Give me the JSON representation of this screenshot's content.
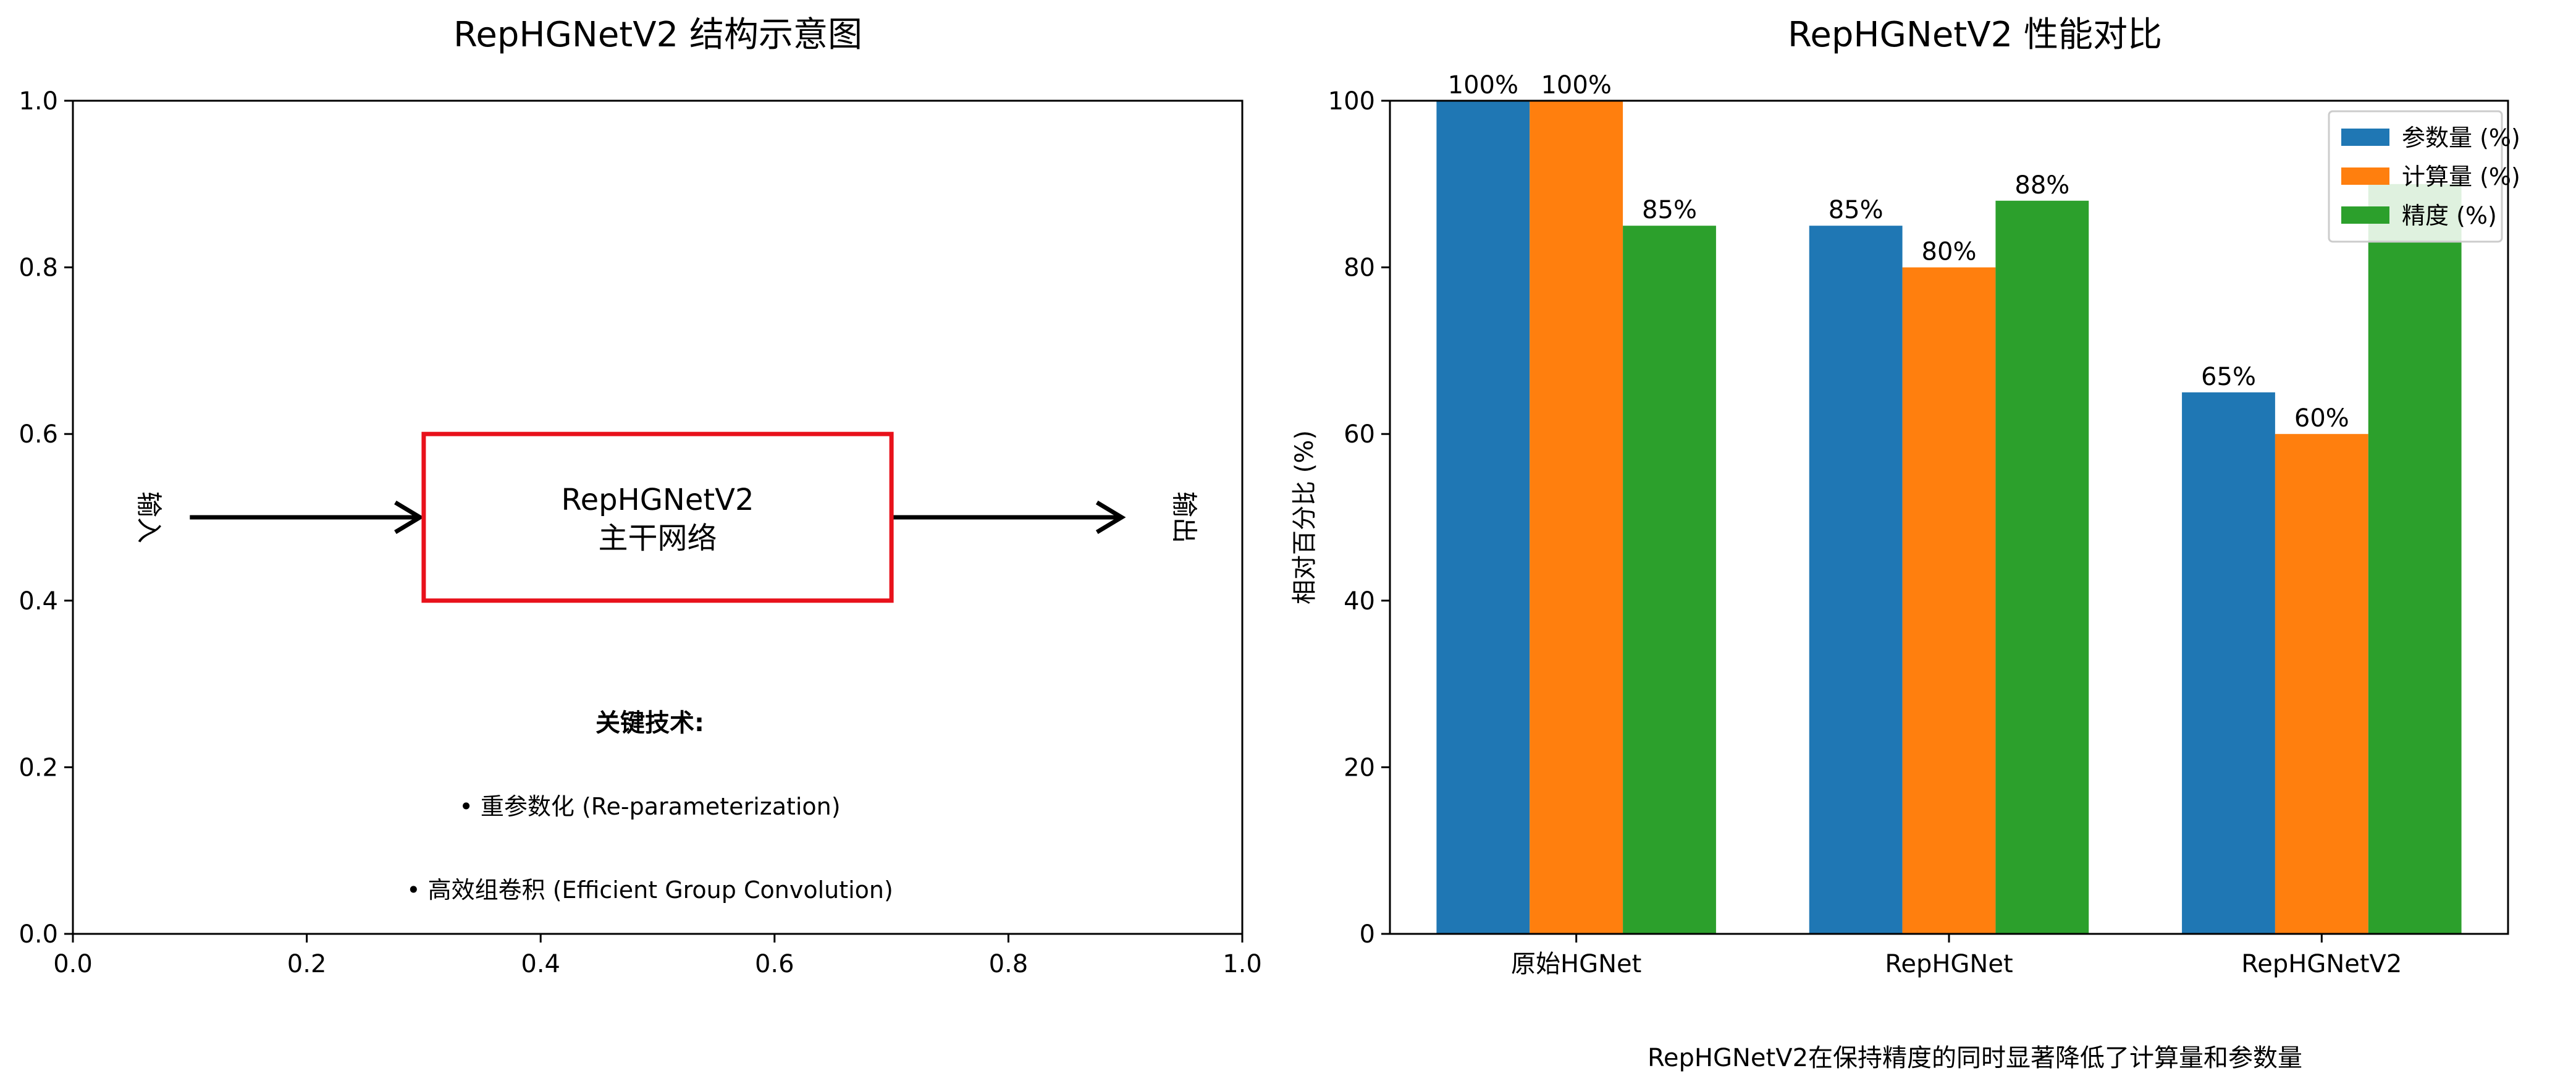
{
  "chart_data": [
    {
      "type": "diagram",
      "title": "RepHGNetV2 结构示意图",
      "xlim": [
        0,
        1
      ],
      "ylim": [
        0,
        1
      ],
      "x_ticks": [
        "0.0",
        "0.2",
        "0.4",
        "0.6",
        "0.8",
        "1.0"
      ],
      "y_ticks": [
        "0.0",
        "0.2",
        "0.4",
        "0.6",
        "0.8",
        "1.0"
      ],
      "input_label": "输入",
      "output_label": "输出",
      "box": {
        "line1": "RepHGNetV2",
        "line2": "主干网络",
        "x0": 0.3,
        "x1": 0.7,
        "y0": 0.4,
        "y1": 0.6,
        "color": "#e8111b"
      },
      "arrows": [
        {
          "from": [
            0.1,
            0.5
          ],
          "to": [
            0.3,
            0.5
          ]
        },
        {
          "from": [
            0.7,
            0.5
          ],
          "to": [
            0.9,
            0.5
          ]
        }
      ],
      "tech_title": "关键技术:",
      "tech_items": [
        "• 重参数化 (Re-parameterization)",
        "• 高效组卷积 (Efficient Group Convolution)"
      ]
    },
    {
      "type": "bar",
      "title": "RepHGNetV2 性能对比",
      "xlabel": "",
      "ylabel": "相对百分比 (%)",
      "ylim": [
        0,
        100
      ],
      "y_ticks": [
        "0",
        "20",
        "40",
        "60",
        "80",
        "100"
      ],
      "categories": [
        "原始HGNet",
        "RepHGNet",
        "RepHGNetV2"
      ],
      "series": [
        {
          "name": "参数量 (%)",
          "values": [
            100,
            85,
            65
          ],
          "color": "#1f77b4"
        },
        {
          "name": "计算量 (%)",
          "values": [
            100,
            80,
            60
          ],
          "color": "#ff7f0e"
        },
        {
          "name": "精度 (%)",
          "values": [
            85,
            88,
            90
          ],
          "color": "#2ca02c"
        }
      ],
      "data_labels": [
        [
          "100%",
          "85%",
          "65%"
        ],
        [
          "100%",
          "80%",
          "60%"
        ],
        [
          "85%",
          "88%",
          ""
        ]
      ],
      "legend_position": "top-right",
      "caption": "RepHGNetV2在保持精度的同时显著降低了计算量和参数量"
    }
  ]
}
